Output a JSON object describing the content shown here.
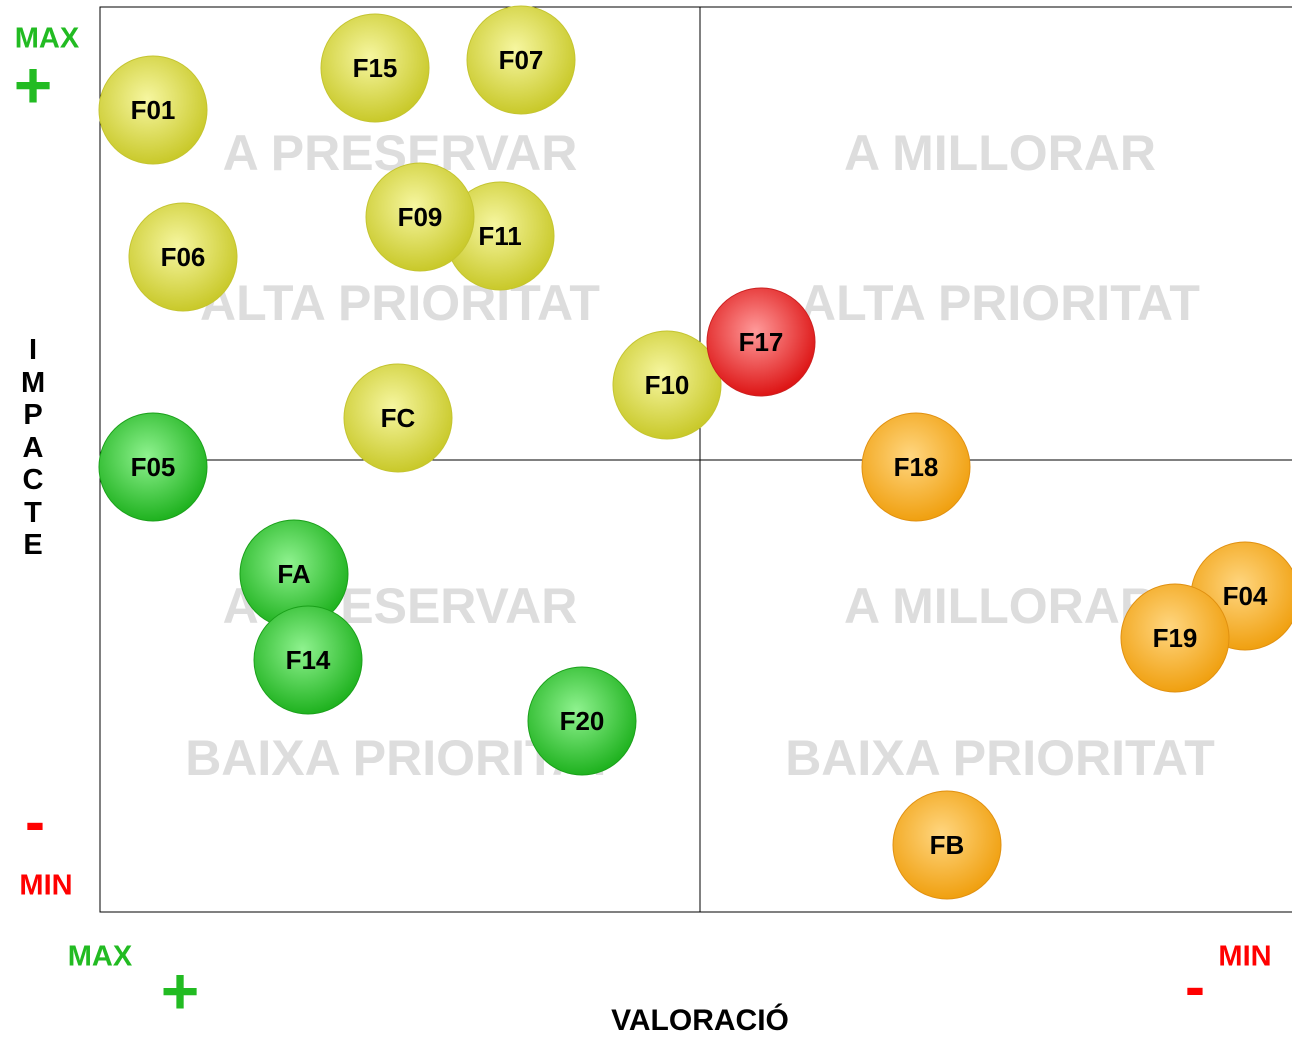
{
  "axis_labels": {
    "y_max": "MAX",
    "y_plus": "+",
    "y_minus": "-",
    "y_min": "MIN",
    "y_title": "IMPACTE",
    "x_max": "MAX",
    "x_plus": "+",
    "x_minus": "-",
    "x_min": "MIN",
    "x_title": "VALORACIÓ"
  },
  "quadrants": [
    {
      "labels": [
        "A PRESERVAR",
        "ALTA PRIORITAT"
      ]
    },
    {
      "labels": [
        "A MILLORAR",
        "ALTA PRIORITAT"
      ]
    },
    {
      "labels": [
        "A PRESERVAR",
        "BAIXA PRIORITAT"
      ]
    },
    {
      "labels": [
        "A MILLORAR",
        "BAIXA PRIORITAT"
      ]
    }
  ],
  "nodes": [
    {
      "label": "F01",
      "color": "yellow"
    },
    {
      "label": "F15",
      "color": "yellow"
    },
    {
      "label": "F07",
      "color": "yellow"
    },
    {
      "label": "F11",
      "color": "yellow"
    },
    {
      "label": "F09",
      "color": "yellow"
    },
    {
      "label": "F06",
      "color": "yellow"
    },
    {
      "label": "F10",
      "color": "yellow"
    },
    {
      "label": "F17",
      "color": "red"
    },
    {
      "label": "FC",
      "color": "yellow"
    },
    {
      "label": "F05",
      "color": "green"
    },
    {
      "label": "F18",
      "color": "orange"
    },
    {
      "label": "FA",
      "color": "green"
    },
    {
      "label": "F14",
      "color": "green"
    },
    {
      "label": "F20",
      "color": "green"
    },
    {
      "label": "F04",
      "color": "orange"
    },
    {
      "label": "F19",
      "color": "orange"
    },
    {
      "label": "FB",
      "color": "orange"
    }
  ]
}
